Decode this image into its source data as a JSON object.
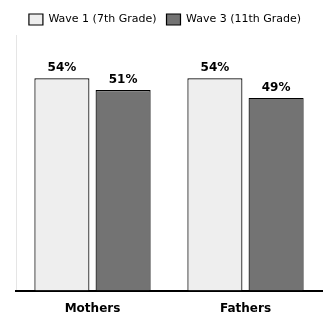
{
  "chart_data": {
    "type": "bar",
    "categories": [
      "Mothers",
      "Fathers"
    ],
    "series": [
      {
        "name": "Wave 1 (7th Grade)",
        "color": "#eeeeee",
        "values": [
          54,
          54
        ],
        "value_labels": [
          "54%",
          "54%"
        ]
      },
      {
        "name": "Wave 3 (11th Grade)",
        "color": "#737373",
        "values": [
          51,
          49
        ],
        "value_labels": [
          "51%",
          "49%"
        ]
      }
    ],
    "ylim": [
      0,
      65
    ],
    "grid": false,
    "legend": "top",
    "data_labels": true,
    "tick_labels": "x"
  }
}
